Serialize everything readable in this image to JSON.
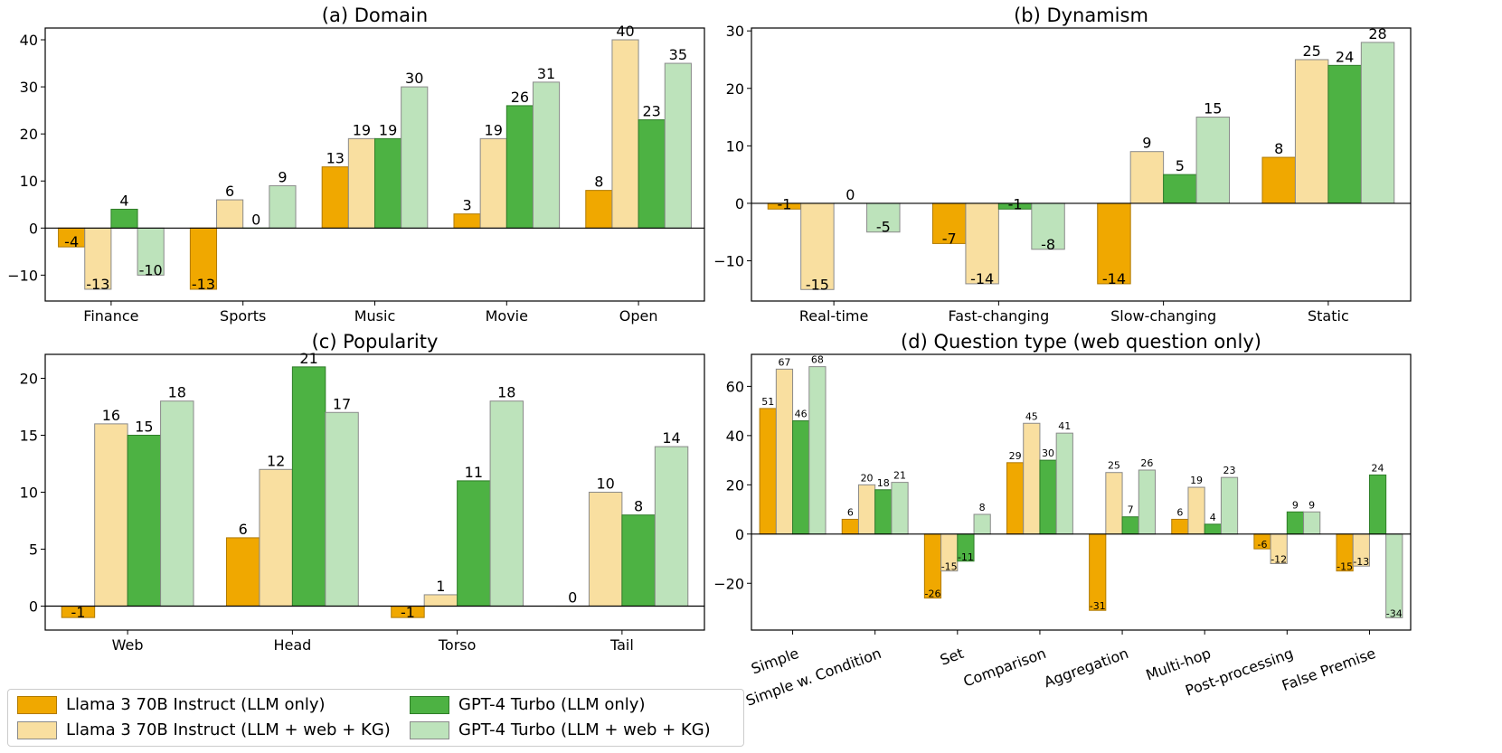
{
  "chart_data": [
    {
      "type": "bar",
      "title": "(a) Domain",
      "categories": [
        "Finance",
        "Sports",
        "Music",
        "Movie",
        "Open"
      ],
      "series": [
        {
          "name": "Llama 3 70B Instruct (LLM only)",
          "values": [
            -4,
            -13,
            13,
            3,
            8
          ]
        },
        {
          "name": "Llama 3 70B Instruct (LLM + web + KG)",
          "values": [
            -13,
            6,
            19,
            19,
            40
          ]
        },
        {
          "name": "GPT-4 Turbo (LLM only)",
          "values": [
            4,
            0,
            19,
            26,
            23
          ]
        },
        {
          "name": "GPT-4 Turbo (LLM + web + KG)",
          "values": [
            -10,
            9,
            30,
            31,
            35
          ]
        }
      ],
      "ylim": [
        -15.5,
        42.5
      ],
      "yticks": [
        -10,
        0,
        10,
        20,
        30,
        40
      ],
      "xlabel": "",
      "ylabel": ""
    },
    {
      "type": "bar",
      "title": "(b) Dynamism",
      "categories": [
        "Real-time",
        "Fast-changing",
        "Slow-changing",
        "Static"
      ],
      "series": [
        {
          "name": "Llama 3 70B Instruct (LLM only)",
          "values": [
            -1,
            -7,
            -14,
            8
          ]
        },
        {
          "name": "Llama 3 70B Instruct (LLM + web + KG)",
          "values": [
            -15,
            -14,
            9,
            25
          ]
        },
        {
          "name": "GPT-4 Turbo (LLM only)",
          "values": [
            0,
            -1,
            5,
            24
          ]
        },
        {
          "name": "GPT-4 Turbo (LLM + web + KG)",
          "values": [
            -5,
            -8,
            15,
            28
          ]
        }
      ],
      "ylim": [
        -17,
        30.5
      ],
      "yticks": [
        -10,
        0,
        10,
        20,
        30
      ],
      "xlabel": "",
      "ylabel": ""
    },
    {
      "type": "bar",
      "title": "(c) Popularity",
      "categories": [
        "Web",
        "Head",
        "Torso",
        "Tail"
      ],
      "series": [
        {
          "name": "Llama 3 70B Instruct (LLM only)",
          "values": [
            -1,
            6,
            -1,
            0
          ]
        },
        {
          "name": "Llama 3 70B Instruct (LLM + web + KG)",
          "values": [
            16,
            12,
            1,
            10
          ]
        },
        {
          "name": "GPT-4 Turbo (LLM only)",
          "values": [
            15,
            21,
            11,
            8
          ]
        },
        {
          "name": "GPT-4 Turbo (LLM + web + KG)",
          "values": [
            18,
            17,
            18,
            14
          ]
        }
      ],
      "ylim": [
        -2.1,
        22.1
      ],
      "yticks": [
        0,
        5,
        10,
        15,
        20
      ],
      "xlabel": "",
      "ylabel": ""
    },
    {
      "type": "bar",
      "title": "(d) Question type (web question only)",
      "categories": [
        "Simple",
        "Simple w. Condition",
        "Set",
        "Comparison",
        "Aggregation",
        "Multi-hop",
        "Post-processing",
        "False Premise"
      ],
      "series": [
        {
          "name": "Llama 3 70B Instruct (LLM only)",
          "values": [
            51,
            6,
            -26,
            29,
            -31,
            6,
            -6,
            -15
          ]
        },
        {
          "name": "Llama 3 70B Instruct (LLM + web + KG)",
          "values": [
            67,
            20,
            -15,
            45,
            25,
            19,
            -12,
            -13
          ]
        },
        {
          "name": "GPT-4 Turbo (LLM only)",
          "values": [
            46,
            18,
            -11,
            30,
            7,
            4,
            9,
            24
          ]
        },
        {
          "name": "GPT-4 Turbo (LLM + web + KG)",
          "values": [
            68,
            21,
            8,
            41,
            26,
            23,
            9,
            -34
          ]
        }
      ],
      "ylim": [
        -39,
        73
      ],
      "yticks": [
        -20,
        0,
        20,
        40,
        60
      ],
      "xlabel": "",
      "ylabel": ""
    }
  ],
  "legend": {
    "items": [
      {
        "label": "Llama 3 70B Instruct (LLM only)",
        "color": "#f0a800"
      },
      {
        "label": "Llama 3 70B Instruct (LLM + web + KG)",
        "color": "#f9dfa0"
      },
      {
        "label": "GPT-4 Turbo (LLM only)",
        "color": "#4db243"
      },
      {
        "label": "GPT-4 Turbo (LLM + web + KG)",
        "color": "#bde3bb"
      }
    ]
  }
}
